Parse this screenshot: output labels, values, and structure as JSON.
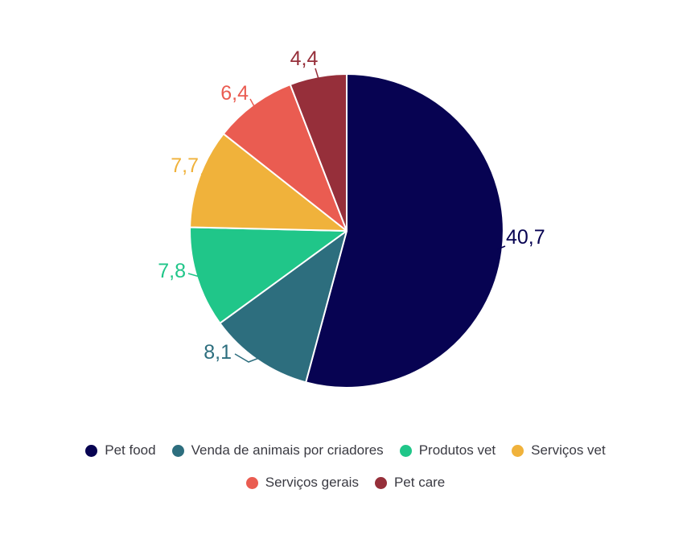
{
  "chart_data": {
    "type": "pie",
    "title": "",
    "decimal_separator": ",",
    "background_color": "#FFFFFF",
    "legend_position": "bottom",
    "rotation": "starts at 12 o'clock, clockwise",
    "slices": [
      {
        "label": "Pet food",
        "value": 40.7,
        "value_label": "40,7",
        "color": "#070352"
      },
      {
        "label": "Venda de animais por criadores",
        "value": 8.1,
        "value_label": "8,1",
        "color": "#2D6E7E"
      },
      {
        "label": "Produtos vet",
        "value": 7.8,
        "value_label": "7,8",
        "color": "#20C689"
      },
      {
        "label": "Serviços vet",
        "value": 7.7,
        "value_label": "7,7",
        "color": "#F0B23B"
      },
      {
        "label": "Serviços gerais",
        "value": 6.4,
        "value_label": "6,4",
        "color": "#EA5C51"
      },
      {
        "label": "Pet care",
        "value": 4.4,
        "value_label": "4,4",
        "color": "#962F3A"
      }
    ],
    "legend_rows": [
      [
        "Pet food",
        "Venda de animais por criadores",
        "Produtos vet",
        "Serviços vet"
      ],
      [
        "Serviços gerais",
        "Pet care"
      ]
    ]
  }
}
